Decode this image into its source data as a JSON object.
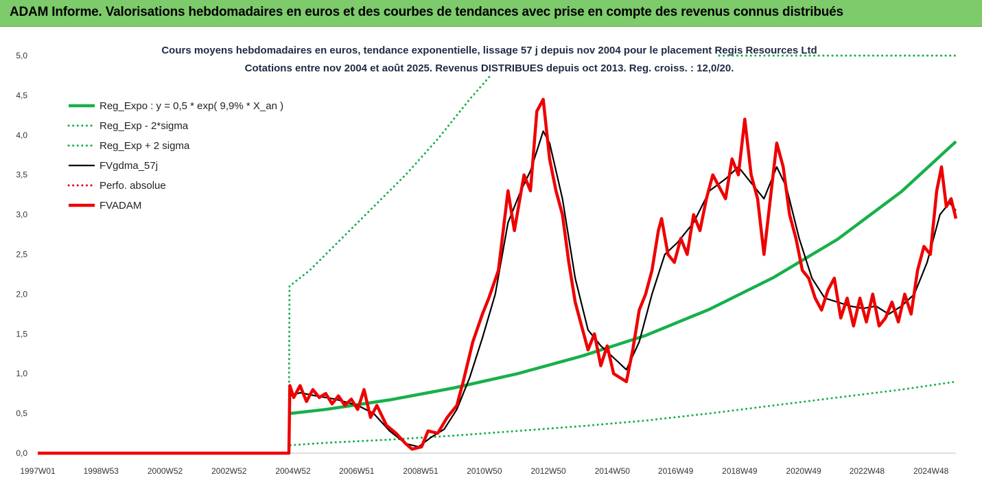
{
  "banner": {
    "title": "ADAM Informe. Valorisations hebdomadaires en euros et des courbes de tendances avec prise en compte des revenus connus distribués"
  },
  "colors": {
    "banner_bg": "#7dcb6b",
    "trend": "#17b04a",
    "band": "#17b04a",
    "smooth": "#000000",
    "perf": "#e00000",
    "adam": "#ee0000"
  },
  "chart_data": {
    "type": "line",
    "title": "Cours moyens hebdomadaires en euros, tendance exponentielle, lissage 57 j depuis nov 2004 pour le placement Regis Resources Ltd",
    "subtitle": "Cotations entre nov 2004 et août 2025. Revenus DISTRIBUES depuis oct 2013. Reg. croiss. : 12,0/20.",
    "xlabel": "",
    "ylabel": "",
    "ylim": [
      0,
      5
    ],
    "yticks": [
      "0,0",
      "0,5",
      "1,0",
      "1,5",
      "2,0",
      "2,5",
      "3,0",
      "3,5",
      "4,0",
      "4,5",
      "5,0"
    ],
    "xlim": [
      1997.0,
      2025.7
    ],
    "xticks": [
      {
        "x": 1997.0,
        "label": "1997W01"
      },
      {
        "x": 1998.98,
        "label": "1998W53"
      },
      {
        "x": 2000.98,
        "label": "2000W52"
      },
      {
        "x": 2002.98,
        "label": "2002W52"
      },
      {
        "x": 2004.98,
        "label": "2004W52"
      },
      {
        "x": 2006.97,
        "label": "2006W51"
      },
      {
        "x": 2008.97,
        "label": "2008W51"
      },
      {
        "x": 2010.96,
        "label": "2010W50"
      },
      {
        "x": 2012.96,
        "label": "2012W50"
      },
      {
        "x": 2014.96,
        "label": "2014W50"
      },
      {
        "x": 2016.94,
        "label": "2016W49"
      },
      {
        "x": 2018.94,
        "label": "2018W49"
      },
      {
        "x": 2020.94,
        "label": "2020W49"
      },
      {
        "x": 2022.92,
        "label": "2022W48"
      },
      {
        "x": 2024.92,
        "label": "2024W48"
      }
    ],
    "grid": false,
    "legend_position": "top-left",
    "series": [
      {
        "name": "Reg_Expo : y = 0,5 * exp( 9,9% *  X_an )",
        "style": "solid-thick",
        "color": "#17b04a",
        "points": [
          [
            2004.9,
            0.5
          ],
          [
            2006,
            0.55
          ],
          [
            2008,
            0.67
          ],
          [
            2010,
            0.82
          ],
          [
            2012,
            1.0
          ],
          [
            2014,
            1.22
          ],
          [
            2016,
            1.48
          ],
          [
            2018,
            1.81
          ],
          [
            2020,
            2.21
          ],
          [
            2022,
            2.69
          ],
          [
            2024,
            3.29
          ],
          [
            2025.7,
            3.92
          ]
        ]
      },
      {
        "name": "Reg_Exp - 2*sigma",
        "style": "dotted",
        "color": "#17b04a",
        "points": [
          [
            2004.9,
            0.1
          ],
          [
            2006,
            0.13
          ],
          [
            2008,
            0.17
          ],
          [
            2010,
            0.22
          ],
          [
            2012,
            0.28
          ],
          [
            2014,
            0.34
          ],
          [
            2016,
            0.41
          ],
          [
            2018,
            0.5
          ],
          [
            2020,
            0.6
          ],
          [
            2022,
            0.7
          ],
          [
            2024,
            0.8
          ],
          [
            2025.7,
            0.9
          ]
        ]
      },
      {
        "name": "Reg_Exp + 2 sigma",
        "style": "dotted",
        "color": "#17b04a",
        "points": [
          [
            2004.85,
            0.5
          ],
          [
            2004.87,
            2.1
          ],
          [
            2005.5,
            2.3
          ],
          [
            2006.5,
            2.7
          ],
          [
            2007.5,
            3.1
          ],
          [
            2008.5,
            3.5
          ],
          [
            2009.5,
            3.95
          ],
          [
            2010.5,
            4.45
          ],
          [
            2011.15,
            4.75
          ]
        ],
        "extra_points": [
          [
            2018.3,
            5.0
          ],
          [
            2025.7,
            5.0
          ]
        ]
      },
      {
        "name": "FVgdma_57j",
        "style": "solid",
        "color": "#000000",
        "points": [
          [
            1997,
            0
          ],
          [
            2004.85,
            0
          ],
          [
            2004.88,
            0.72
          ],
          [
            2005.2,
            0.76
          ],
          [
            2005.7,
            0.72
          ],
          [
            2006.3,
            0.68
          ],
          [
            2007,
            0.6
          ],
          [
            2007.5,
            0.5
          ],
          [
            2008,
            0.28
          ],
          [
            2008.5,
            0.12
          ],
          [
            2008.9,
            0.08
          ],
          [
            2009.3,
            0.2
          ],
          [
            2009.7,
            0.3
          ],
          [
            2010.1,
            0.55
          ],
          [
            2010.5,
            0.95
          ],
          [
            2010.9,
            1.45
          ],
          [
            2011.3,
            2.0
          ],
          [
            2011.7,
            2.9
          ],
          [
            2012.1,
            3.3
          ],
          [
            2012.4,
            3.55
          ],
          [
            2012.8,
            4.05
          ],
          [
            2013.0,
            3.9
          ],
          [
            2013.4,
            3.2
          ],
          [
            2013.8,
            2.2
          ],
          [
            2014.2,
            1.55
          ],
          [
            2014.6,
            1.35
          ],
          [
            2015.0,
            1.2
          ],
          [
            2015.4,
            1.05
          ],
          [
            2015.8,
            1.4
          ],
          [
            2016.2,
            2.0
          ],
          [
            2016.6,
            2.5
          ],
          [
            2017.0,
            2.65
          ],
          [
            2017.5,
            2.9
          ],
          [
            2018.0,
            3.3
          ],
          [
            2018.5,
            3.45
          ],
          [
            2018.9,
            3.6
          ],
          [
            2019.3,
            3.4
          ],
          [
            2019.7,
            3.2
          ],
          [
            2020.1,
            3.6
          ],
          [
            2020.4,
            3.35
          ],
          [
            2020.8,
            2.7
          ],
          [
            2021.2,
            2.2
          ],
          [
            2021.6,
            1.95
          ],
          [
            2022.0,
            1.9
          ],
          [
            2022.4,
            1.85
          ],
          [
            2022.8,
            1.82
          ],
          [
            2023.2,
            1.85
          ],
          [
            2023.6,
            1.75
          ],
          [
            2024.0,
            1.85
          ],
          [
            2024.4,
            2.0
          ],
          [
            2024.8,
            2.4
          ],
          [
            2025.2,
            3.0
          ],
          [
            2025.5,
            3.15
          ],
          [
            2025.7,
            3.05
          ]
        ]
      },
      {
        "name": "Perfo. absolue",
        "style": "dotted",
        "color": "#e00000",
        "points": []
      },
      {
        "name": "FVADAM",
        "style": "solid-thick",
        "color": "#ee0000",
        "points": [
          [
            1997,
            0
          ],
          [
            2004.85,
            0
          ],
          [
            2004.88,
            0.85
          ],
          [
            2005.0,
            0.7
          ],
          [
            2005.2,
            0.85
          ],
          [
            2005.4,
            0.65
          ],
          [
            2005.6,
            0.8
          ],
          [
            2005.8,
            0.7
          ],
          [
            2006.0,
            0.75
          ],
          [
            2006.2,
            0.62
          ],
          [
            2006.4,
            0.72
          ],
          [
            2006.6,
            0.6
          ],
          [
            2006.8,
            0.68
          ],
          [
            2007.0,
            0.55
          ],
          [
            2007.2,
            0.8
          ],
          [
            2007.4,
            0.45
          ],
          [
            2007.6,
            0.6
          ],
          [
            2007.9,
            0.35
          ],
          [
            2008.2,
            0.25
          ],
          [
            2008.5,
            0.12
          ],
          [
            2008.7,
            0.05
          ],
          [
            2009.0,
            0.08
          ],
          [
            2009.2,
            0.28
          ],
          [
            2009.5,
            0.25
          ],
          [
            2009.8,
            0.45
          ],
          [
            2010.1,
            0.6
          ],
          [
            2010.3,
            0.9
          ],
          [
            2010.6,
            1.4
          ],
          [
            2010.9,
            1.75
          ],
          [
            2011.1,
            1.95
          ],
          [
            2011.4,
            2.3
          ],
          [
            2011.7,
            3.3
          ],
          [
            2011.9,
            2.8
          ],
          [
            2012.2,
            3.5
          ],
          [
            2012.4,
            3.3
          ],
          [
            2012.6,
            4.3
          ],
          [
            2012.8,
            4.45
          ],
          [
            2013.0,
            3.7
          ],
          [
            2013.2,
            3.3
          ],
          [
            2013.4,
            3.0
          ],
          [
            2013.6,
            2.4
          ],
          [
            2013.8,
            1.9
          ],
          [
            2014.0,
            1.6
          ],
          [
            2014.2,
            1.3
          ],
          [
            2014.4,
            1.5
          ],
          [
            2014.6,
            1.1
          ],
          [
            2014.8,
            1.35
          ],
          [
            2015.0,
            1.0
          ],
          [
            2015.2,
            0.95
          ],
          [
            2015.4,
            0.9
          ],
          [
            2015.6,
            1.3
          ],
          [
            2015.8,
            1.8
          ],
          [
            2016.0,
            2.0
          ],
          [
            2016.2,
            2.3
          ],
          [
            2016.4,
            2.8
          ],
          [
            2016.5,
            2.95
          ],
          [
            2016.7,
            2.5
          ],
          [
            2016.9,
            2.4
          ],
          [
            2017.1,
            2.7
          ],
          [
            2017.3,
            2.5
          ],
          [
            2017.5,
            3.0
          ],
          [
            2017.7,
            2.8
          ],
          [
            2017.9,
            3.2
          ],
          [
            2018.1,
            3.5
          ],
          [
            2018.3,
            3.35
          ],
          [
            2018.5,
            3.2
          ],
          [
            2018.7,
            3.7
          ],
          [
            2018.9,
            3.5
          ],
          [
            2019.1,
            4.2
          ],
          [
            2019.3,
            3.5
          ],
          [
            2019.5,
            3.2
          ],
          [
            2019.7,
            2.5
          ],
          [
            2019.9,
            3.2
          ],
          [
            2020.1,
            3.9
          ],
          [
            2020.3,
            3.6
          ],
          [
            2020.5,
            3.0
          ],
          [
            2020.7,
            2.7
          ],
          [
            2020.9,
            2.3
          ],
          [
            2021.1,
            2.2
          ],
          [
            2021.3,
            1.95
          ],
          [
            2021.5,
            1.8
          ],
          [
            2021.7,
            2.05
          ],
          [
            2021.9,
            2.2
          ],
          [
            2022.1,
            1.7
          ],
          [
            2022.3,
            1.95
          ],
          [
            2022.5,
            1.6
          ],
          [
            2022.7,
            1.95
          ],
          [
            2022.9,
            1.65
          ],
          [
            2023.1,
            2.0
          ],
          [
            2023.3,
            1.6
          ],
          [
            2023.5,
            1.7
          ],
          [
            2023.7,
            1.9
          ],
          [
            2023.9,
            1.65
          ],
          [
            2024.1,
            2.0
          ],
          [
            2024.3,
            1.75
          ],
          [
            2024.5,
            2.3
          ],
          [
            2024.7,
            2.6
          ],
          [
            2024.9,
            2.5
          ],
          [
            2025.1,
            3.3
          ],
          [
            2025.25,
            3.6
          ],
          [
            2025.4,
            3.1
          ],
          [
            2025.55,
            3.2
          ],
          [
            2025.7,
            2.95
          ]
        ]
      }
    ]
  }
}
